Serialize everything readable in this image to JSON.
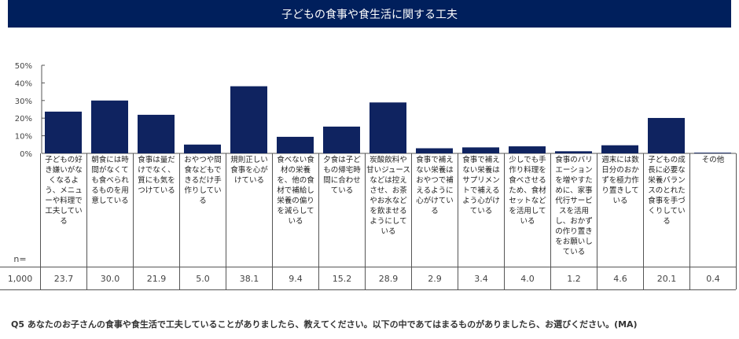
{
  "title": "子どもの食事や食生活に関する工夫",
  "question": "Q5 あなたのお子さんの食事や食生活で工夫していることがありましたら、教えてください。以下の中であてはまるものがありましたら、お選びください。(MA)",
  "n_label": "n=",
  "n_value": "1,000",
  "colors": {
    "bar": "#0f2360",
    "title_bg": "#001f5c"
  },
  "chart_data": {
    "type": "bar",
    "ylim": [
      0,
      50
    ],
    "yticks": [
      "0%",
      "10%",
      "20%",
      "30%",
      "40%",
      "50%"
    ],
    "categories": [
      "子どもの好き嫌いがなくなるよう、メニューや料理で工夫している",
      "朝食には時間がなくても食べられるものを用意している",
      "食事は量だけでなく、質にも気をつけている",
      "おやつや間食などもできるだけ手作りしている",
      "規則正しい食事を心がけている",
      "食べない食材の栄養を、他の食材で補給し栄養の偏りを減らしている",
      "夕食は子どもの帰宅時間に合わせている",
      "炭酸飲料や甘いジュースなどは控えさせ、お茶やお水などを飲ませるようにしている",
      "食事で補えない栄養はおやつで補えるように心がけている",
      "食事で補えない栄養はサプリメントで補えるよう心がけている",
      "少しでも手作り料理を食べさせるため、食材セットなどを活用している",
      "食事のバリエーションを増やすために、家事代行サービスを活用し、おかずの作り置きをお願いしている",
      "週末には数日分のおかずを極力作り置きしている",
      "子どもの成長に必要な栄養バランスのとれた食事を手づくりしている",
      "その他"
    ],
    "values": [
      23.7,
      30.0,
      21.9,
      5.0,
      38.1,
      9.4,
      15.2,
      28.9,
      2.9,
      3.4,
      4.0,
      1.2,
      4.6,
      20.1,
      0.4
    ],
    "value_labels": [
      "23.7",
      "30.0",
      "21.9",
      "5.0",
      "38.1",
      "9.4",
      "15.2",
      "28.9",
      "2.9",
      "3.4",
      "4.0",
      "1.2",
      "4.6",
      "20.1",
      "0.4"
    ]
  }
}
